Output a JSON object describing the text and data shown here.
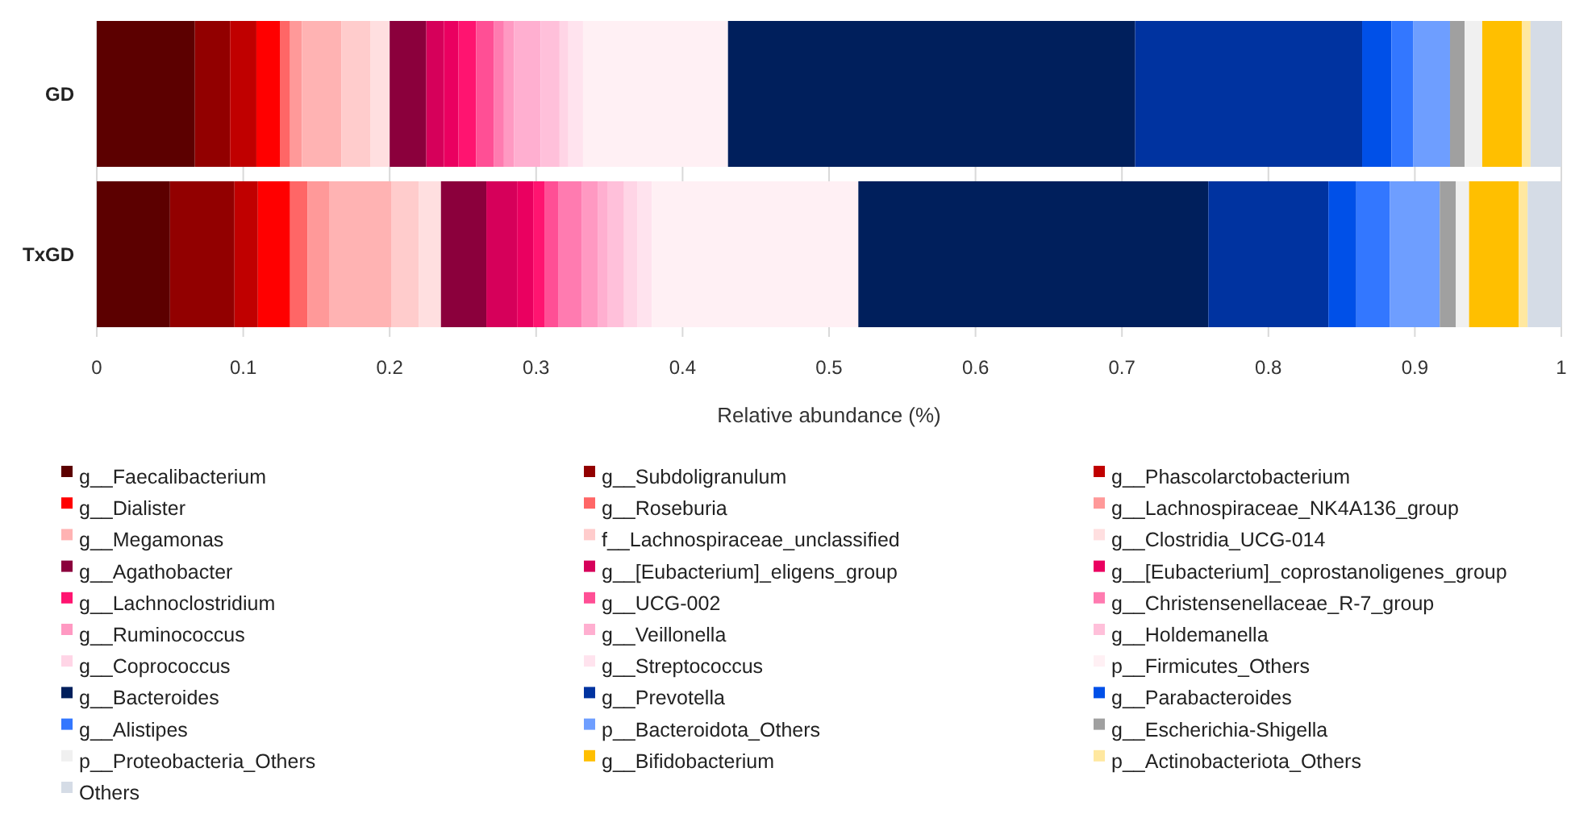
{
  "chart_data": {
    "type": "bar",
    "orientation": "horizontal",
    "stacked": true,
    "xlabel": "Relative abundance (%)",
    "categories": [
      "GD",
      "TxGD"
    ],
    "xlim": [
      0,
      1
    ],
    "xticks": [
      0,
      0.1,
      0.2,
      0.3,
      0.4,
      0.5,
      0.6,
      0.7,
      0.8,
      0.9,
      1
    ],
    "grid": "x",
    "legend": "bottom",
    "series": [
      {
        "name": "g__Faecalibacterium",
        "color": "#5c0000",
        "values": [
          0.067,
          0.05
        ]
      },
      {
        "name": "g__Subdoligranulum",
        "color": "#920000",
        "values": [
          0.024,
          0.044
        ]
      },
      {
        "name": "g__Phascolarctobacterium",
        "color": "#c00000",
        "values": [
          0.018,
          0.016
        ]
      },
      {
        "name": "g__Dialister",
        "color": "#ff0000",
        "values": [
          0.016,
          0.022
        ]
      },
      {
        "name": "g__Roseburia",
        "color": "#ff6666",
        "values": [
          0.007,
          0.012
        ]
      },
      {
        "name": "g__Lachnospiraceae_NK4A136_group",
        "color": "#ff9999",
        "values": [
          0.008,
          0.015
        ]
      },
      {
        "name": "g__Megamonas",
        "color": "#ffb3b3",
        "values": [
          0.027,
          0.042
        ]
      },
      {
        "name": "f__Lachnospiraceae_unclassified",
        "color": "#ffcccc",
        "values": [
          0.02,
          0.019
        ]
      },
      {
        "name": "g__Clostridia_UCG-014",
        "color": "#ffdfe0",
        "values": [
          0.013,
          0.015
        ]
      },
      {
        "name": "g__Agathobacter",
        "color": "#8b003c",
        "values": [
          0.025,
          0.031
        ]
      },
      {
        "name": "g__[Eubacterium]_eligens_group",
        "color": "#d6005a",
        "values": [
          0.012,
          0.021
        ]
      },
      {
        "name": "g__[Eubacterium]_coprostanoligenes_group",
        "color": "#ea0060",
        "values": [
          0.01,
          0.011
        ]
      },
      {
        "name": "g__Lachnoclostridium",
        "color": "#ff1470",
        "values": [
          0.012,
          0.008
        ]
      },
      {
        "name": "g__UCG-002",
        "color": "#ff4f95",
        "values": [
          0.012,
          0.009
        ]
      },
      {
        "name": "g__Christensenellaceae_R-7_group",
        "color": "#ff7bb0",
        "values": [
          0.007,
          0.016
        ]
      },
      {
        "name": "g__Ruminococcus",
        "color": "#ff99c2",
        "values": [
          0.007,
          0.011
        ]
      },
      {
        "name": "g__Veillonella",
        "color": "#ffafd0",
        "values": [
          0.018,
          0.007
        ]
      },
      {
        "name": "g__Holdemanella",
        "color": "#ffc0da",
        "values": [
          0.013,
          0.011
        ]
      },
      {
        "name": "g__Coprococcus",
        "color": "#ffd5e6",
        "values": [
          0.006,
          0.009
        ]
      },
      {
        "name": "g__Streptococcus",
        "color": "#ffe3ee",
        "values": [
          0.01,
          0.01
        ]
      },
      {
        "name": "p__Firmicutes_Others",
        "color": "#fff0f4",
        "values": [
          0.099,
          0.141
        ]
      },
      {
        "name": "g__Bacteroides",
        "color": "#001f5c",
        "values": [
          0.278,
          0.239
        ]
      },
      {
        "name": "g__Prevotella",
        "color": "#0033a0",
        "values": [
          0.155,
          0.082
        ]
      },
      {
        "name": "g__Parabacteroides",
        "color": "#0050e8",
        "values": [
          0.02,
          0.019
        ]
      },
      {
        "name": "g__Alistipes",
        "color": "#3377ff",
        "values": [
          0.015,
          0.023
        ]
      },
      {
        "name": "p__Bacteroidota_Others",
        "color": "#6e9eff",
        "values": [
          0.025,
          0.034
        ]
      },
      {
        "name": "g__Escherichia-Shigella",
        "color": "#a0a0a0",
        "values": [
          0.01,
          0.011
        ]
      },
      {
        "name": "p__Proteobacteria_Others",
        "color": "#f0f0f0",
        "values": [
          0.012,
          0.009
        ]
      },
      {
        "name": "g__Bifidobacterium",
        "color": "#ffbf00",
        "values": [
          0.027,
          0.034
        ]
      },
      {
        "name": "p__Actinobacteriota_Others",
        "color": "#ffe8a0",
        "values": [
          0.006,
          0.006
        ]
      },
      {
        "name": "Others",
        "color": "#d5dce6",
        "values": [
          0.021,
          0.023
        ]
      }
    ]
  }
}
